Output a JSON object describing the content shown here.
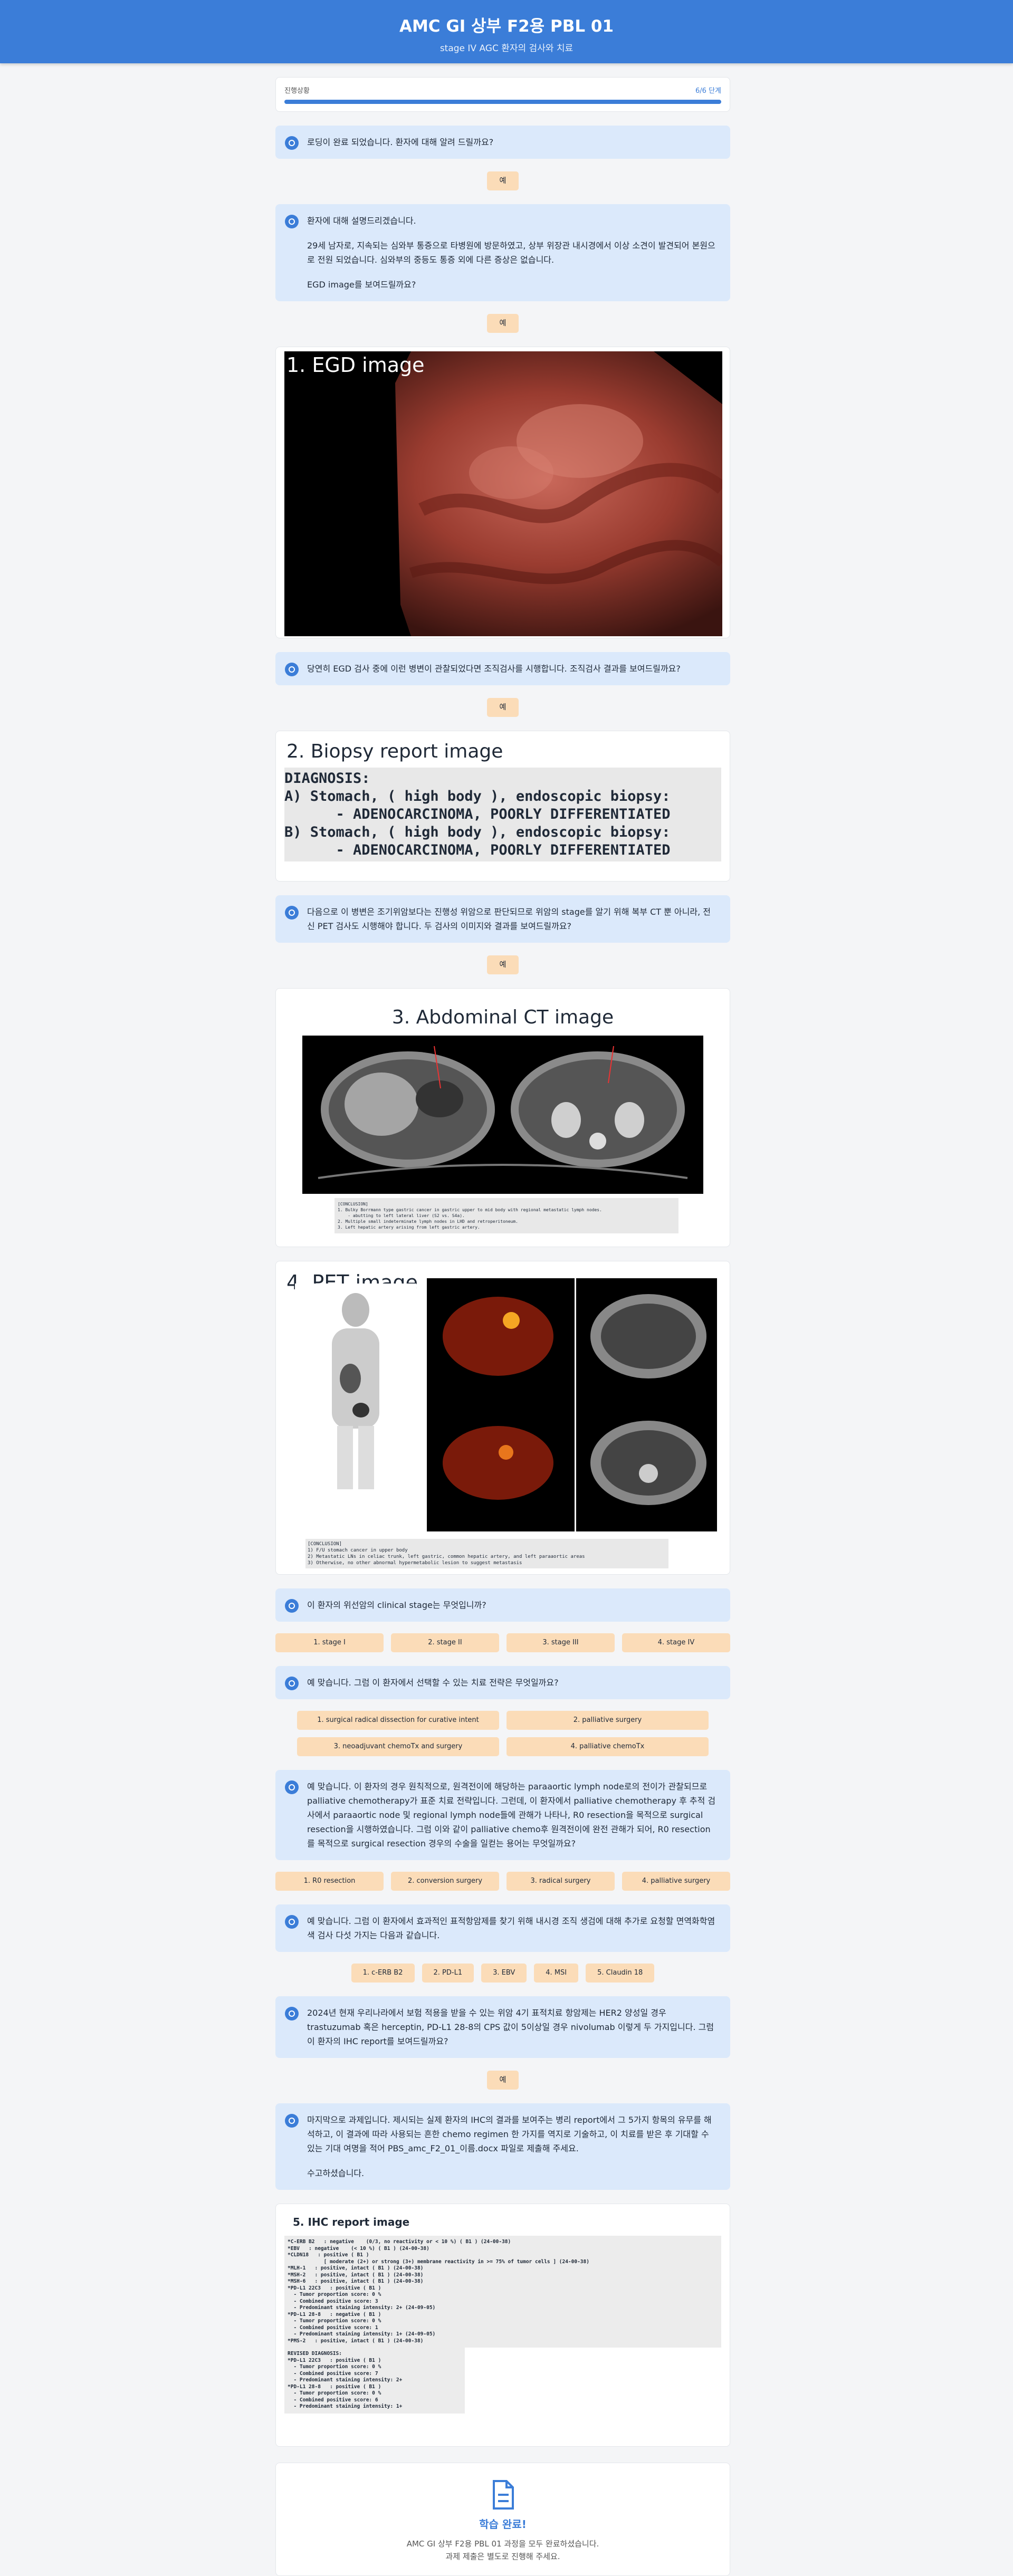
{
  "header": {
    "title": "AMC GI 상부 F2용 PBL 01",
    "subtitle": "stage IV AGC 환자의 검사와 치료"
  },
  "progress": {
    "label": "진행상황",
    "step": "6/6 단계"
  },
  "items": [
    {
      "message": [
        "로딩이 완료 되었습니다. 환자에 대해 알려 드릴까요?"
      ]
    },
    {
      "reply": "예"
    },
    {
      "message": [
        "환자에 대해 설명드리겠습니다.",
        "",
        "29세 남자로, 지속되는 심와부 통증으로 타병원에 방문하였고, 상부 위장관 내시경에서 이상 소견이 발견되어 본원으로 전원 되었습니다. 심와부의 중등도 통증 외에 다른 증상은 없습니다.",
        "",
        "EGD image를 보여드릴까요?"
      ]
    },
    {
      "reply": "예"
    },
    {
      "egd": {
        "title": "1. EGD image"
      }
    },
    {
      "message": [
        "당연히 EGD 검사 중에 이런 병변이 관찰되었다면 조직검사를 시행합니다. 조직검사 결과를 보여드릴까요?"
      ]
    },
    {
      "reply": "예"
    },
    {
      "report": {
        "title": "2. Biopsy report image",
        "lines": [
          "DIAGNOSIS:",
          "A) Stomach, ( high body ), endoscopic biopsy:",
          "      - ADENOCARCINOMA, POORLY DIFFERENTIATED",
          "B) Stomach, ( high body ), endoscopic biopsy:",
          "      - ADENOCARCINOMA, POORLY DIFFERENTIATED"
        ]
      }
    },
    {
      "message": [
        "다음으로 이 병변은 조기위암보다는 진행성 위암으로 판단되므로 위암의 stage를 알기 위해 복부 CT 뿐 아니라, 전신 PET 검사도 시행해야 합니다. 두 검사의 이미지와 결과를 보여드릴까요?"
      ]
    },
    {
      "reply": "예"
    },
    {
      "ct": {
        "title": "3. Abdominal CT image",
        "lines": [
          "[CONCLUSION]",
          "1. Bulky Borrmann type gastric cancer in gastric upper to mid body with regional metastatic lymph nodes.",
          "    - abutting to left lateral liver (S2 vs. S4a).",
          "2. Multiple small indeterminate lymph nodes in LHD and retroperitoneum.",
          "3. Left hepatic artery arising from left gastric artery."
        ]
      }
    },
    {
      "pet": {
        "title": "4. PET image",
        "lines": [
          "[CONCLUSION]",
          "1) F/U stomach cancer in upper body",
          "2) Metastatic LNs in celiac trunk, left gastric, common hepatic artery, and left paraaortic areas",
          "3) Otherwise, no other abnormal hypermetabolic lesion to suggest metastasis"
        ]
      }
    },
    {
      "message": [
        "이 환자의 위선암의 clinical stage는 무엇입니까?"
      ]
    },
    {
      "options": [
        "1. stage I",
        "2. stage II",
        "3. stage III",
        "4. stage IV"
      ]
    },
    {
      "message": [
        "예 맞습니다. 그럼 이 환자에서 선택할 수 있는 치료 전략은 무엇일까요?"
      ]
    },
    {
      "grid": [
        "1. surgical radical dissection for curative intent",
        "2. palliative surgery",
        "3. neoadjuvant chemoTx and surgery",
        "4. palliative chemoTx"
      ]
    },
    {
      "message": [
        "예 맞습니다. 이 환자의 경우 원칙적으로, 원격전이에 해당하는 paraaortic lymph node로의 전이가 관찰되므로 palliative chemotherapy가 표준 치료 전략입니다. 그런데, 이 환자에서 palliative chemotherapy 후 추적 검사에서 paraaortic node 및 regional lymph node들에 관해가 나타나, R0 resection을 목적으로 surgical resection을 시행하였습니다. 그럼 이와 같이 palliative chemo후 원격전이에 완전 관해가 되어, R0 resection를 목적으로 surgical resection 경우의 수술을 일컫는 용어는 무엇일까요?"
      ]
    },
    {
      "options": [
        "1. R0 resection",
        "2. conversion surgery",
        "3. radical surgery",
        "4. palliative surgery"
      ]
    },
    {
      "message": [
        "예 맞습니다. 그럼 이 환자에서 효과적인 표적항암제를 찾기 위해 내시경 조직 생검에 대해 추가로 요청할 면역화학염색 검사 다섯 가지는 다음과 같습니다."
      ]
    },
    {
      "chips": [
        "1. c-ERB B2",
        "2. PD-L1",
        "3. EBV",
        "4. MSI",
        "5. Claudin 18"
      ]
    },
    {
      "message": [
        "2024년 현재 우리나라에서 보험 적용을 받을 수 있는 위암 4기 표적치료 항암제는 HER2 양성일 경우 trastuzumab 혹은 herceptin, PD-L1 28-8의 CPS 값이 5이상일 경우 nivolumab 이렇게 두 가지입니다. 그럼 이 환자의 IHC report를 보여드릴까요?"
      ]
    },
    {
      "reply": "예"
    },
    {
      "message": [
        "마지막으로 과제입니다. 제시되는 실제 환자의 IHC의 결과를 보여주는 병리 report에서 그 5가지 항목의 유무를 해석하고, 이 결과에 따라 사용되는 흔한 chemo regimen 한 가지를 역지로 기술하고, 이 치료를 받은 후 기대할 수 있는 기대 여명을 적어 PBS_amc_F2_01_이름.docx 파일로 제출해 주세요.",
        "",
        "수고하셨습니다."
      ]
    },
    {
      "ihc": {
        "title": "5. IHC report image",
        "lines": [
          "*C-ERB B2   : negative    (0/3, no reactivity or < 10 %) ( B1 ) (24-00-38)",
          "*EBV   : negative    (< 10 %) ( B1 ) (24-00-38)",
          "*CLDN18   : positive ( B1 )",
          "            [ moderate (2+) or strong (3+) membrane reactivity in >= 75% of tumor cells ] (24-00-38)",
          "*MLH-1   : positive, intact ( B1 ) (24-00-38)",
          "*MSH-2   : positive, intact ( B1 ) (24-00-38)",
          "*MSH-6   : positive, intact ( B1 ) (24-00-38)",
          "*PD-L1 22C3   : positive ( B1 )",
          "  - Tumor proportion score: 0 %",
          "  - Combined positive score: 3",
          "  - Predominant staining intensity: 2+ (24-09-05)",
          "*PD-L1 28-8   : negative ( B1 )",
          "  - Tumor proportion score: 0 %",
          "  - Combined positive score: 1",
          "  - Predominant staining intensity: 1+ (24-09-05)",
          "*PMS-2   : positive, intact ( B1 ) (24-00-38)"
        ],
        "extra": [
          "REVISED DIAGNOSIS:",
          "",
          "*PD-L1 22C3   : positive ( B1 )",
          "  - Tumor proportion score: 0 %",
          "  - Combined positive score: 7",
          "  - Predominant staining intensity: 2+",
          "*PD-L1 28-8   : positive ( B1 )",
          "  - Tumor proportion score: 0 %",
          "  - Combined positive score: 6",
          "  - Predominant staining intensity: 1+"
        ]
      }
    },
    {
      "done": {
        "title": "학습 완료!",
        "lines": [
          "AMC GI 상부 F2용 PBL 01 과정을 모두 완료하셨습니다.",
          "과제 제출은 별도로 진행해 주세요."
        ]
      }
    }
  ]
}
